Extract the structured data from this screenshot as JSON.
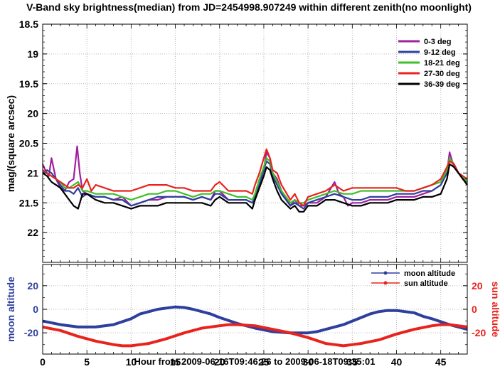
{
  "chart_data": [
    {
      "type": "line",
      "title": "V-Band sky brightness(median) from JD=2454998.907249 within different zenith(no moonlight)",
      "xlabel": "",
      "ylabel": "mag/(square arcsec)",
      "xlim": [
        0,
        48
      ],
      "ylim": [
        22.5,
        18.5
      ],
      "y_inverted": true,
      "yticks": [
        "18.5",
        "19",
        "19.5",
        "20",
        "20.5",
        "21",
        "21.5",
        "22"
      ],
      "grid": true,
      "legend_position": "top-right",
      "series": [
        {
          "name": "0-3 deg",
          "color": "#a020a0",
          "x": [
            0,
            0.3,
            0.7,
            1,
            1.5,
            2,
            2.5,
            3,
            3.5,
            3.9,
            4.2,
            4.5,
            5,
            6,
            7,
            8,
            9,
            10,
            11,
            12,
            13,
            14,
            15,
            16,
            17,
            18,
            19,
            19.5,
            20,
            21,
            22,
            23,
            23.7,
            24,
            24.5,
            25,
            25.3,
            25.7,
            26,
            26.5,
            27,
            28,
            28.5,
            29,
            29.5,
            30,
            31,
            32,
            33,
            33.5,
            34,
            34.5,
            35,
            36,
            37,
            38,
            39,
            40,
            41,
            42,
            43,
            44,
            45,
            45.7,
            46,
            46.5,
            47,
            47.5,
            48
          ],
          "values": [
            20.85,
            20.95,
            21.05,
            20.75,
            21.1,
            21.25,
            21.3,
            21.15,
            21.1,
            20.55,
            21.0,
            21.3,
            21.35,
            21.4,
            21.4,
            21.45,
            21.4,
            21.55,
            21.5,
            21.45,
            21.45,
            21.4,
            21.4,
            21.4,
            21.45,
            21.4,
            21.45,
            21.3,
            21.3,
            21.45,
            21.45,
            21.45,
            21.5,
            21.45,
            21.2,
            20.95,
            20.65,
            20.75,
            21.0,
            21.1,
            21.3,
            21.55,
            21.45,
            21.55,
            21.55,
            21.5,
            21.5,
            21.4,
            21.15,
            21.35,
            21.4,
            21.55,
            21.5,
            21.5,
            21.45,
            21.45,
            21.45,
            21.4,
            21.4,
            21.4,
            21.35,
            21.3,
            21.2,
            21.0,
            20.65,
            20.9,
            21.0,
            21.05,
            21.15
          ]
        },
        {
          "name": "9-12 deg",
          "color": "#2e3f9e",
          "x": [
            0,
            0.5,
            1,
            1.5,
            2,
            2.5,
            3,
            3.5,
            4,
            4.5,
            5,
            6,
            7,
            8,
            9,
            10,
            11,
            12,
            13,
            14,
            15,
            16,
            17,
            18,
            19,
            19.5,
            20,
            21,
            22,
            23,
            23.7,
            24,
            24.5,
            25,
            25.3,
            25.7,
            26,
            26.5,
            27,
            28,
            28.5,
            29,
            29.5,
            30,
            31,
            32,
            33,
            34,
            35,
            36,
            37,
            38,
            39,
            40,
            41,
            42,
            43,
            44,
            45,
            45.7,
            46,
            46.5,
            47,
            47.5,
            48
          ],
          "values": [
            21.0,
            20.95,
            21.0,
            21.1,
            21.2,
            21.3,
            21.3,
            21.35,
            21.25,
            21.4,
            21.35,
            21.4,
            21.4,
            21.45,
            21.45,
            21.55,
            21.5,
            21.45,
            21.4,
            21.4,
            21.4,
            21.4,
            21.45,
            21.4,
            21.45,
            21.35,
            21.35,
            21.45,
            21.45,
            21.45,
            21.5,
            21.4,
            21.2,
            20.95,
            20.8,
            20.85,
            21.05,
            21.2,
            21.35,
            21.55,
            21.5,
            21.55,
            21.6,
            21.5,
            21.45,
            21.4,
            21.35,
            21.4,
            21.45,
            21.45,
            21.4,
            21.4,
            21.4,
            21.35,
            21.35,
            21.35,
            21.3,
            21.3,
            21.2,
            21.0,
            20.75,
            20.85,
            21.0,
            21.1,
            21.15
          ]
        },
        {
          "name": "18-21 deg",
          "color": "#3fbf2a",
          "x": [
            0,
            0.5,
            1,
            1.5,
            2,
            2.5,
            3,
            3.5,
            4,
            4.5,
            5,
            6,
            7,
            8,
            9,
            10,
            11,
            12,
            13,
            14,
            15,
            16,
            17,
            18,
            19,
            19.5,
            20,
            21,
            22,
            23,
            23.7,
            24,
            24.5,
            25,
            25.3,
            25.7,
            26,
            26.5,
            27,
            28,
            28.5,
            29,
            29.5,
            30,
            31,
            32,
            33,
            34,
            35,
            36,
            37,
            38,
            39,
            40,
            41,
            42,
            43,
            44,
            45,
            45.7,
            46,
            46.5,
            47,
            47.5,
            48
          ],
          "values": [
            20.95,
            21.0,
            21.05,
            21.1,
            21.15,
            21.25,
            21.25,
            21.2,
            21.15,
            21.3,
            21.3,
            21.35,
            21.35,
            21.35,
            21.4,
            21.45,
            21.4,
            21.35,
            21.35,
            21.3,
            21.3,
            21.35,
            21.4,
            21.35,
            21.35,
            21.3,
            21.3,
            21.35,
            21.4,
            21.4,
            21.45,
            21.35,
            21.1,
            20.9,
            20.75,
            20.8,
            21.0,
            21.15,
            21.3,
            21.5,
            21.45,
            21.5,
            21.5,
            21.45,
            21.4,
            21.35,
            21.3,
            21.35,
            21.35,
            21.3,
            21.3,
            21.3,
            21.3,
            21.3,
            21.3,
            21.3,
            21.25,
            21.2,
            21.15,
            20.95,
            20.75,
            20.85,
            21.0,
            21.05,
            21.15
          ]
        },
        {
          "name": "27-30 deg",
          "color": "#e8231d",
          "x": [
            0,
            0.5,
            1,
            1.5,
            2,
            2.5,
            3,
            3.5,
            4,
            4.5,
            5,
            5.5,
            6,
            7,
            8,
            9,
            10,
            11,
            12,
            13,
            14,
            15,
            16,
            17,
            18,
            19,
            19.5,
            20,
            21,
            22,
            23,
            23.7,
            24,
            24.5,
            25,
            25.3,
            25.7,
            26,
            26.5,
            27,
            28,
            28.5,
            29,
            29.5,
            30,
            31,
            32,
            33,
            34,
            35,
            36,
            37,
            38,
            39,
            40,
            41,
            42,
            43,
            44,
            45,
            45.7,
            46,
            46.5,
            47,
            47.5,
            48
          ],
          "values": [
            20.95,
            21.0,
            21.05,
            21.1,
            21.15,
            21.2,
            21.25,
            21.25,
            21.2,
            21.25,
            21.1,
            21.3,
            21.2,
            21.25,
            21.3,
            21.3,
            21.3,
            21.25,
            21.2,
            21.2,
            21.2,
            21.25,
            21.25,
            21.3,
            21.3,
            21.3,
            21.2,
            21.15,
            21.3,
            21.3,
            21.3,
            21.35,
            21.2,
            21.0,
            20.75,
            20.6,
            20.75,
            20.95,
            21.0,
            21.2,
            21.45,
            21.35,
            21.5,
            21.55,
            21.4,
            21.35,
            21.3,
            21.2,
            21.3,
            21.25,
            21.25,
            21.25,
            21.25,
            21.25,
            21.25,
            21.3,
            21.3,
            21.25,
            21.2,
            21.1,
            20.9,
            20.8,
            20.85,
            21.0,
            21.05,
            21.1
          ]
        },
        {
          "name": "36-39 deg",
          "color": "#000000",
          "x": [
            0,
            0.5,
            1,
            1.5,
            2,
            2.5,
            3,
            3.5,
            4,
            4.5,
            5,
            6,
            7,
            8,
            9,
            10,
            11,
            12,
            13,
            14,
            15,
            16,
            17,
            18,
            19,
            19.5,
            20,
            21,
            22,
            23,
            23.7,
            24,
            24.5,
            25,
            25.3,
            25.7,
            26,
            26.5,
            27,
            28,
            28.5,
            29,
            29.5,
            30,
            31,
            32,
            33,
            34,
            35,
            36,
            37,
            38,
            39,
            40,
            41,
            42,
            43,
            44,
            45,
            45.7,
            46,
            46.5,
            47,
            47.5,
            48
          ],
          "values": [
            21.0,
            21.05,
            21.15,
            21.2,
            21.25,
            21.35,
            21.45,
            21.55,
            21.6,
            21.35,
            21.35,
            21.45,
            21.5,
            21.5,
            21.55,
            21.6,
            21.55,
            21.55,
            21.55,
            21.5,
            21.5,
            21.5,
            21.5,
            21.5,
            21.55,
            21.45,
            21.4,
            21.5,
            21.5,
            21.5,
            21.6,
            21.45,
            21.25,
            21.05,
            20.9,
            20.95,
            21.1,
            21.3,
            21.45,
            21.6,
            21.55,
            21.65,
            21.65,
            21.55,
            21.55,
            21.45,
            21.45,
            21.5,
            21.55,
            21.55,
            21.5,
            21.5,
            21.5,
            21.45,
            21.45,
            21.45,
            21.4,
            21.4,
            21.35,
            21.1,
            20.85,
            20.9,
            21.0,
            21.1,
            21.2
          ]
        }
      ]
    },
    {
      "type": "scatter",
      "xlabel": "Hour from 2009-06-16T09:46:26 to 2009-06-18T09:35:01",
      "xlim": [
        0,
        48
      ],
      "xticks": [
        "0",
        "5",
        "10",
        "15",
        "20",
        "25",
        "30",
        "35",
        "40",
        "45"
      ],
      "ylabel_left": "moon altitude",
      "ylabel_right": "sun altitude",
      "ylim": [
        -38,
        38
      ],
      "yticks": [
        "20",
        "0",
        "-20"
      ],
      "grid": true,
      "legend_position": "top-right",
      "series": [
        {
          "name": "moon altitude",
          "color": "#2e3f9e",
          "x": [
            0,
            2,
            4,
            6,
            8,
            10,
            11,
            12,
            13,
            14,
            15,
            16,
            17,
            18,
            19,
            20,
            22,
            24,
            26,
            28,
            29,
            30,
            31,
            32,
            33,
            34,
            35,
            36,
            37,
            38,
            39,
            40,
            41,
            42,
            43,
            44,
            46,
            48
          ],
          "values": [
            -10,
            -13,
            -15,
            -15,
            -13,
            -8,
            -4,
            -2,
            0,
            1,
            2,
            1.5,
            0,
            -2,
            -4,
            -7,
            -12,
            -16,
            -19,
            -20,
            -20,
            -20,
            -19,
            -17,
            -15,
            -13,
            -10,
            -7,
            -4,
            -2,
            -1,
            -1,
            -2,
            -3,
            -6,
            -8,
            -13,
            -17
          ]
        },
        {
          "name": "sun altitude",
          "color": "#e8231d",
          "x": [
            0,
            2,
            4,
            6,
            8,
            9,
            10,
            11,
            12,
            14,
            16,
            18,
            20,
            21,
            22,
            24,
            26,
            28,
            30,
            32,
            33,
            34,
            35,
            36,
            38,
            40,
            42,
            44,
            45,
            46,
            48
          ],
          "values": [
            -15,
            -18,
            -23,
            -27,
            -30,
            -31,
            -31,
            -30,
            -29,
            -25,
            -20,
            -16,
            -14,
            -13,
            -13,
            -14,
            -17,
            -20,
            -24,
            -29,
            -30,
            -31,
            -30,
            -29,
            -26,
            -21,
            -17,
            -14,
            -13,
            -13,
            -15
          ]
        }
      ]
    }
  ]
}
